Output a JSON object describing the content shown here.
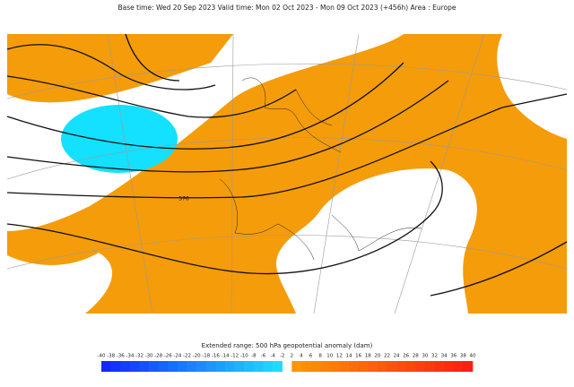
{
  "header": {
    "title": "Base time: Wed 20 Sep 2023 Valid time: Mon 02 Oct 2023 - Mon 09 Oct 2023 (+456h) Area : Europe"
  },
  "map": {
    "contour_labels": [
      "576"
    ]
  },
  "legend": {
    "title": "Extended range: 500 hPa geopotential anomaly (dam)",
    "ticks": [
      "-40",
      "-38",
      "-36",
      "-34",
      "-32",
      "-30",
      "-28",
      "-26",
      "-24",
      "-22",
      "-20",
      "-18",
      "-16",
      "-14",
      "-12",
      "-10",
      "-8",
      "-6",
      "-4",
      "-2",
      "2",
      "4",
      "6",
      "8",
      "10",
      "12",
      "14",
      "16",
      "18",
      "20",
      "22",
      "24",
      "26",
      "28",
      "30",
      "32",
      "34",
      "36",
      "38",
      "40"
    ]
  }
}
